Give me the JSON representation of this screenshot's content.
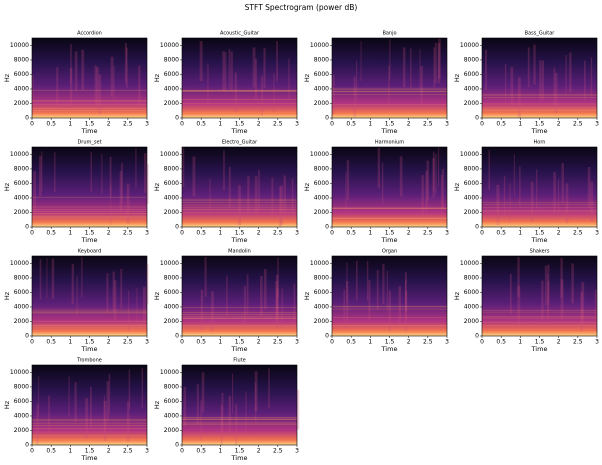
{
  "title": "STFT Spectrogram (power dB)",
  "chart_data": [
    {
      "type": "spectrogram",
      "title": "Accordion",
      "xlabel": "Time",
      "ylabel": "Hz",
      "xlim": [
        0,
        3
      ],
      "ylim": [
        0,
        11025
      ],
      "xticks": [
        0,
        0.5,
        1,
        1.5,
        2,
        2.5,
        3
      ],
      "yticks": [
        0,
        2000,
        4000,
        6000,
        8000,
        10000
      ]
    },
    {
      "type": "spectrogram",
      "title": "Acoustic_Guitar",
      "xlabel": "Time",
      "ylabel": "Hz",
      "xlim": [
        0,
        3
      ],
      "ylim": [
        0,
        11025
      ],
      "xticks": [
        0,
        0.5,
        1,
        1.5,
        2,
        2.5,
        3
      ],
      "yticks": [
        0,
        2000,
        4000,
        6000,
        8000,
        10000
      ]
    },
    {
      "type": "spectrogram",
      "title": "Banjo",
      "xlabel": "Time",
      "ylabel": "Hz",
      "xlim": [
        0,
        3
      ],
      "ylim": [
        0,
        11025
      ],
      "xticks": [
        0,
        0.5,
        1,
        1.5,
        2,
        2.5,
        3
      ],
      "yticks": [
        0,
        2000,
        4000,
        6000,
        8000,
        10000
      ]
    },
    {
      "type": "spectrogram",
      "title": "Bass_Guitar",
      "xlabel": "Time",
      "ylabel": "Hz",
      "xlim": [
        0,
        3
      ],
      "ylim": [
        0,
        11025
      ],
      "xticks": [
        0,
        0.5,
        1,
        1.5,
        2,
        2.5,
        3
      ],
      "yticks": [
        0,
        2000,
        4000,
        6000,
        8000,
        10000
      ]
    },
    {
      "type": "spectrogram",
      "title": "Drum_set",
      "xlabel": "Time",
      "ylabel": "Hz",
      "xlim": [
        0,
        3
      ],
      "ylim": [
        0,
        11025
      ],
      "xticks": [
        0,
        0.5,
        1,
        1.5,
        2,
        2.5,
        3
      ],
      "yticks": [
        0,
        2000,
        4000,
        6000,
        8000,
        10000
      ]
    },
    {
      "type": "spectrogram",
      "title": "Electro_Guitar",
      "xlabel": "Time",
      "ylabel": "Hz",
      "xlim": [
        0,
        3
      ],
      "ylim": [
        0,
        11025
      ],
      "xticks": [
        0,
        0.5,
        1,
        1.5,
        2,
        2.5,
        3
      ],
      "yticks": [
        0,
        2000,
        4000,
        6000,
        8000,
        10000
      ]
    },
    {
      "type": "spectrogram",
      "title": "Harmonium",
      "xlabel": "Time",
      "ylabel": "Hz",
      "xlim": [
        0,
        3
      ],
      "ylim": [
        0,
        11025
      ],
      "xticks": [
        0,
        0.5,
        1,
        1.5,
        2,
        2.5,
        3
      ],
      "yticks": [
        0,
        2000,
        4000,
        6000,
        8000,
        10000
      ]
    },
    {
      "type": "spectrogram",
      "title": "Horn",
      "xlabel": "Time",
      "ylabel": "Hz",
      "xlim": [
        0,
        3
      ],
      "ylim": [
        0,
        11025
      ],
      "xticks": [
        0,
        0.5,
        1,
        1.5,
        2,
        2.5,
        3
      ],
      "yticks": [
        0,
        2000,
        4000,
        6000,
        8000,
        10000
      ]
    },
    {
      "type": "spectrogram",
      "title": "Keyboard",
      "xlabel": "Time",
      "ylabel": "Hz",
      "xlim": [
        0,
        3
      ],
      "ylim": [
        0,
        11025
      ],
      "xticks": [
        0,
        0.5,
        1,
        1.5,
        2,
        2.5,
        3
      ],
      "yticks": [
        0,
        2000,
        4000,
        6000,
        8000,
        10000
      ]
    },
    {
      "type": "spectrogram",
      "title": "Mandolin",
      "xlabel": "Time",
      "ylabel": "Hz",
      "xlim": [
        0,
        3
      ],
      "ylim": [
        0,
        11025
      ],
      "xticks": [
        0,
        0.5,
        1,
        1.5,
        2,
        2.5,
        3
      ],
      "yticks": [
        0,
        2000,
        4000,
        6000,
        8000,
        10000
      ]
    },
    {
      "type": "spectrogram",
      "title": "Organ",
      "xlabel": "Time",
      "ylabel": "Hz",
      "xlim": [
        0,
        3
      ],
      "ylim": [
        0,
        11025
      ],
      "xticks": [
        0,
        0.5,
        1,
        1.5,
        2,
        2.5,
        3
      ],
      "yticks": [
        0,
        2000,
        4000,
        6000,
        8000,
        10000
      ]
    },
    {
      "type": "spectrogram",
      "title": "Shakers",
      "xlabel": "Time",
      "ylabel": "Hz",
      "xlim": [
        0,
        3
      ],
      "ylim": [
        0,
        11025
      ],
      "xticks": [
        0,
        0.5,
        1,
        1.5,
        2,
        2.5,
        3
      ],
      "yticks": [
        0,
        2000,
        4000,
        6000,
        8000,
        10000
      ]
    },
    {
      "type": "spectrogram",
      "title": "Trombone",
      "xlabel": "Time",
      "ylabel": "Hz",
      "xlim": [
        0,
        3
      ],
      "ylim": [
        0,
        11025
      ],
      "xticks": [
        0,
        0.5,
        1,
        1.5,
        2,
        2.5,
        3
      ],
      "yticks": [
        0,
        2000,
        4000,
        6000,
        8000,
        10000
      ]
    },
    {
      "type": "spectrogram",
      "title": "Flute",
      "xlabel": "Time",
      "ylabel": "Hz",
      "xlim": [
        0,
        3
      ],
      "ylim": [
        0,
        11025
      ],
      "xticks": [
        0,
        0.5,
        1,
        1.5,
        2,
        2.5,
        3
      ],
      "yticks": [
        0,
        2000,
        4000,
        6000,
        8000,
        10000
      ]
    }
  ]
}
